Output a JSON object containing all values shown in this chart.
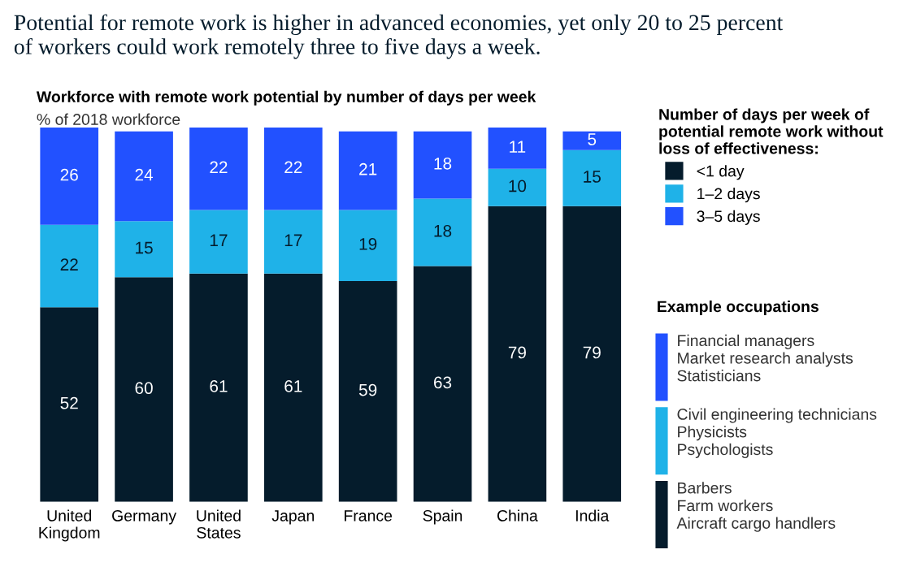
{
  "chart_data": {
    "type": "bar",
    "stacked": true,
    "data_labels": true,
    "legend": "right",
    "grid": false,
    "title": "Potential for remote work is higher in advanced economies, yet only 20 to 25 percent\nof workers could work remotely three to five days a week.",
    "subtitle": "Workforce with remote work potential by number of days per week",
    "ylabel": "% of 2018 workforce",
    "legend_title": "Number of days per week of\npotential remote work without\nloss of effectiveness:",
    "categories": [
      "United Kingdom",
      "Germany",
      "United States",
      "Japan",
      "France",
      "Spain",
      "China",
      "India"
    ],
    "series": [
      {
        "name": "<1 day",
        "color": "#051c2c",
        "values": [
          52,
          60,
          61,
          61,
          59,
          63,
          79,
          79
        ]
      },
      {
        "name": "1–2 days",
        "color": "#1fb2e8",
        "values": [
          22,
          15,
          17,
          17,
          19,
          18,
          10,
          15
        ]
      },
      {
        "name": "3–5 days",
        "color": "#2251ff",
        "values": [
          26,
          24,
          22,
          22,
          21,
          18,
          11,
          5
        ]
      }
    ],
    "annotations": [
      "Example occupations",
      "Financial managers\nMarket research analysts\nStatisticians",
      "Civil engineering technicians\nPhysicists\nPsychologists",
      "Barbers\nFarm workers\nAircraft cargo handlers"
    ]
  }
}
